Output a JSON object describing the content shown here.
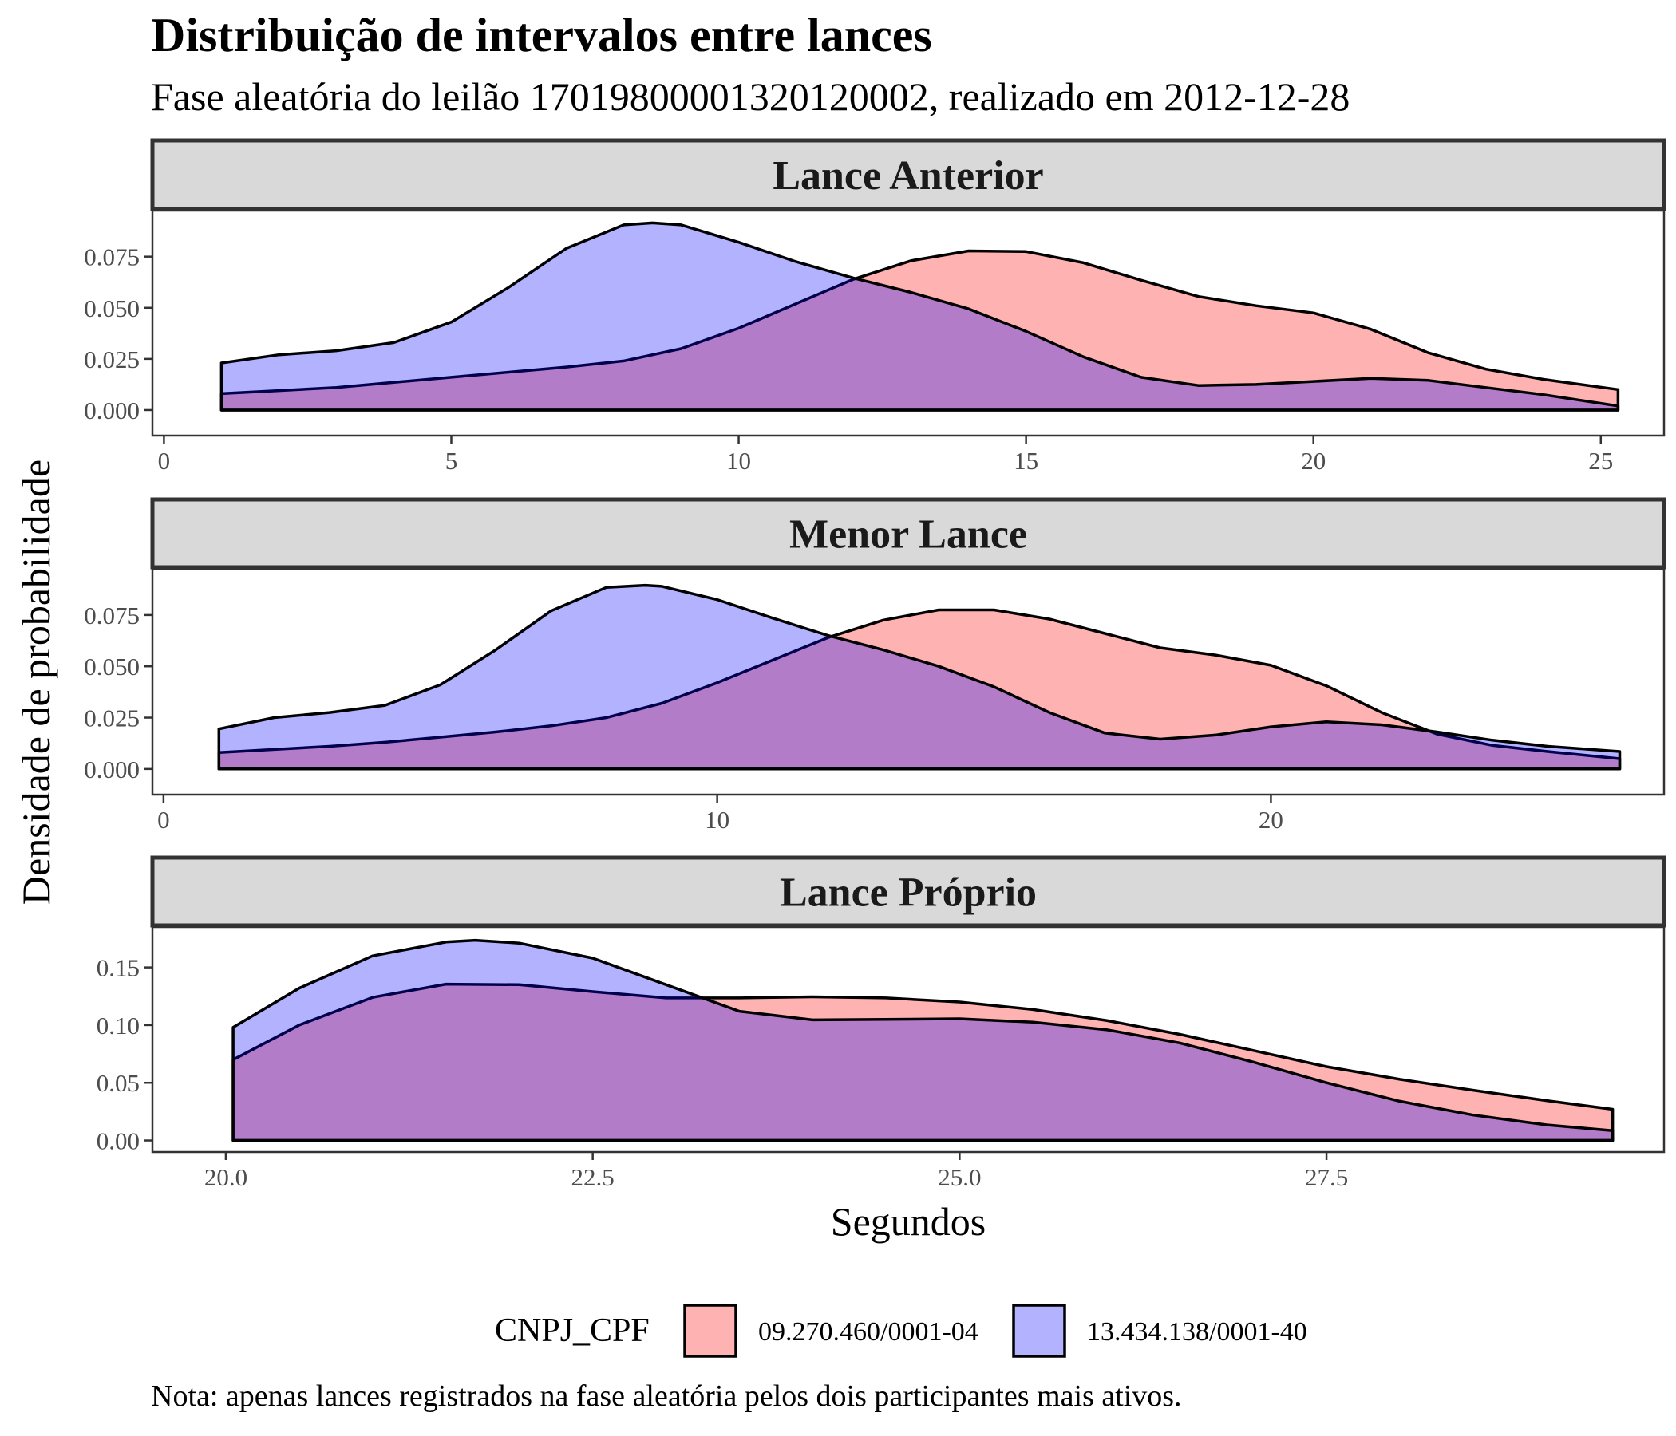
{
  "title": "Distribuição de intervalos entre lances",
  "subtitle": "Fase aleatória do leilão 17019800001320120002, realizado em 2012-12-28",
  "caption": "Nota: apenas lances registrados na fase aleatória pelos dois participantes mais ativos.",
  "ylabel": "Densidade de probabilidade",
  "xlabel": "Segundos",
  "legend": {
    "title": "CNPJ_CPF",
    "position": "bottom",
    "items": [
      {
        "label": "09.270.460/0001-04",
        "color": "#ff0000"
      },
      {
        "label": "13.434.138/0001-40",
        "color": "#0000ff"
      }
    ]
  },
  "colors": {
    "fill_opacity": 0.3,
    "outline": "#000000",
    "strip_fill": "#d9d9d9",
    "strip_border": "#333333"
  },
  "chart_data": [
    {
      "type": "area",
      "panel": "Lance Anterior",
      "xlim": [
        -0.2,
        26.1
      ],
      "ylim": [
        -0.0125,
        0.0975
      ],
      "xticks": [
        0,
        5,
        10,
        15,
        20,
        25
      ],
      "xtick_labels": [
        "0",
        "5",
        "10",
        "15",
        "20",
        "25"
      ],
      "yticks": [
        0,
        0.025,
        0.05,
        0.075
      ],
      "ytick_labels": [
        "0.000",
        "0.025",
        "0.050",
        "0.075"
      ],
      "series": [
        {
          "name": "09.270.460/0001-04",
          "x": [
            1,
            2,
            3,
            4,
            5,
            6,
            7,
            8,
            9,
            10,
            11,
            12,
            13,
            14,
            15,
            16,
            17,
            18,
            19,
            20,
            21,
            22,
            23,
            24,
            25.3
          ],
          "y": [
            0.008,
            0.0095,
            0.011,
            0.0135,
            0.016,
            0.0185,
            0.021,
            0.024,
            0.03,
            0.04,
            0.052,
            0.064,
            0.073,
            0.0778,
            0.0775,
            0.072,
            0.0635,
            0.0555,
            0.051,
            0.0475,
            0.0395,
            0.028,
            0.02,
            0.015,
            0.01
          ]
        },
        {
          "name": "13.434.138/0001-40",
          "x": [
            1,
            2,
            3,
            4,
            5,
            6,
            7,
            8,
            8.5,
            9,
            10,
            11,
            12,
            13,
            14,
            15,
            16,
            17,
            18,
            19,
            20,
            21,
            22,
            23,
            24,
            25.3
          ],
          "y": [
            0.023,
            0.027,
            0.029,
            0.033,
            0.043,
            0.06,
            0.079,
            0.0905,
            0.0915,
            0.0905,
            0.082,
            0.0725,
            0.0645,
            0.0575,
            0.0495,
            0.0385,
            0.026,
            0.016,
            0.012,
            0.0125,
            0.014,
            0.0155,
            0.0145,
            0.011,
            0.0075,
            0.002
          ]
        }
      ]
    },
    {
      "type": "area",
      "panel": "Menor Lance",
      "xlim": [
        -0.2,
        27.1
      ],
      "ylim": [
        -0.0125,
        0.0975
      ],
      "xticks": [
        0,
        10,
        20
      ],
      "xtick_labels": [
        "0",
        "10",
        "20"
      ],
      "yticks": [
        0,
        0.025,
        0.05,
        0.075
      ],
      "ytick_labels": [
        "0.000",
        "0.025",
        "0.050",
        "0.075"
      ],
      "series": [
        {
          "name": "09.270.460/0001-04",
          "x": [
            1,
            2,
            3,
            4,
            5,
            6,
            7,
            8,
            9,
            10,
            11,
            12,
            13,
            14,
            15,
            16,
            17,
            18,
            19,
            20,
            21,
            22,
            23,
            24,
            25,
            26.3
          ],
          "y": [
            0.008,
            0.0095,
            0.011,
            0.013,
            0.0155,
            0.018,
            0.021,
            0.025,
            0.032,
            0.042,
            0.053,
            0.064,
            0.0725,
            0.0775,
            0.0775,
            0.073,
            0.066,
            0.059,
            0.0555,
            0.0505,
            0.0405,
            0.0275,
            0.017,
            0.0115,
            0.0085,
            0.005
          ]
        },
        {
          "name": "13.434.138/0001-40",
          "x": [
            1,
            2,
            3,
            4,
            5,
            6,
            7,
            8,
            8.7,
            9,
            10,
            11,
            12,
            13,
            14,
            15,
            16,
            17,
            18,
            19,
            20,
            21,
            22,
            23,
            24,
            25,
            26.3
          ],
          "y": [
            0.0195,
            0.025,
            0.0275,
            0.031,
            0.041,
            0.058,
            0.077,
            0.0885,
            0.0895,
            0.089,
            0.0825,
            0.0735,
            0.065,
            0.058,
            0.05,
            0.04,
            0.0275,
            0.0175,
            0.0145,
            0.0165,
            0.0205,
            0.023,
            0.0215,
            0.018,
            0.014,
            0.011,
            0.0085
          ]
        }
      ]
    },
    {
      "type": "area",
      "panel": "Lance Próprio",
      "xlim": [
        19.5,
        29.8
      ],
      "ylim": [
        -0.01,
        0.185
      ],
      "xticks": [
        20,
        22.5,
        25,
        27.5
      ],
      "xtick_labels": [
        "20.0",
        "22.5",
        "25.0",
        "27.5"
      ],
      "yticks": [
        0,
        0.05,
        0.1,
        0.15
      ],
      "ytick_labels": [
        "0.00",
        "0.05",
        "0.10",
        "0.15"
      ],
      "series": [
        {
          "name": "09.270.460/0001-04",
          "x": [
            20.05,
            20.5,
            21,
            21.5,
            22,
            22.5,
            23,
            23.5,
            24,
            24.5,
            25,
            25.5,
            26,
            26.5,
            27,
            27.5,
            28,
            28.5,
            29,
            29.45
          ],
          "y": [
            0.07,
            0.1,
            0.124,
            0.1355,
            0.135,
            0.129,
            0.1235,
            0.1235,
            0.1245,
            0.1235,
            0.12,
            0.1135,
            0.104,
            0.092,
            0.078,
            0.064,
            0.053,
            0.0435,
            0.0345,
            0.027
          ]
        },
        {
          "name": "13.434.138/0001-40",
          "x": [
            20.05,
            20.5,
            21,
            21.5,
            21.7,
            22,
            22.5,
            23,
            23.5,
            24,
            24.5,
            25,
            25.5,
            26,
            26.5,
            27,
            27.5,
            28,
            28.5,
            29,
            29.45
          ],
          "y": [
            0.098,
            0.132,
            0.16,
            0.172,
            0.1735,
            0.171,
            0.158,
            0.135,
            0.112,
            0.1045,
            0.105,
            0.1055,
            0.1025,
            0.096,
            0.0845,
            0.068,
            0.05,
            0.034,
            0.022,
            0.0135,
            0.0085
          ]
        }
      ]
    }
  ]
}
